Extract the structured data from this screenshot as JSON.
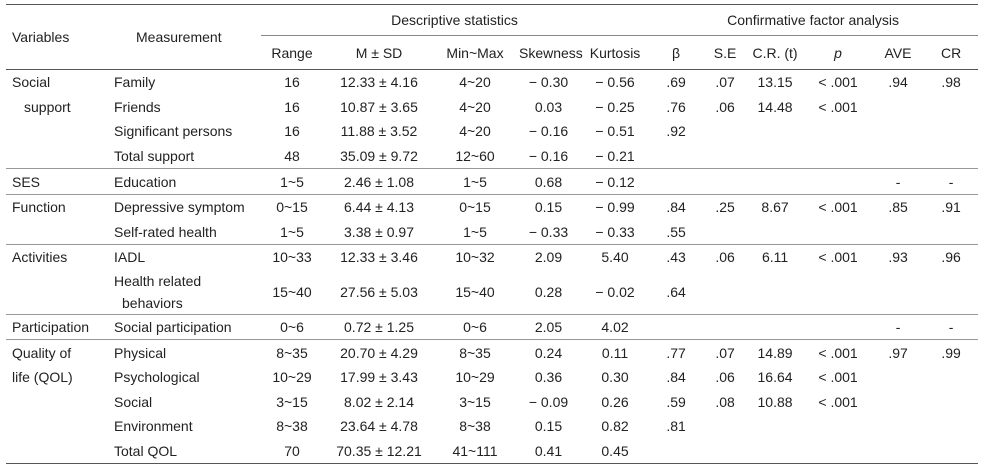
{
  "headers": {
    "variables": "Variables",
    "measurement": "Measurement",
    "group_desc": "Descriptive statistics",
    "group_cfa": "Confirmative factor analysis",
    "range": "Range",
    "msd": "M ± SD",
    "minmax": "Min~Max",
    "skewness": "Skewness",
    "kurtosis": "Kurtosis",
    "beta": "β",
    "se": "S.E",
    "cr_t": "C.R. (t)",
    "p": "p",
    "ave": "AVE",
    "cr": "CR"
  },
  "rows": [
    {
      "var": "Social",
      "meas": "Family",
      "range": "16",
      "msd": "12.33 ± 4.16",
      "minmax": "4~20",
      "skew": "− 0.30",
      "kurt": "− 0.56",
      "beta": ".69",
      "se": ".07",
      "crt": "13.15",
      "p": "< .001",
      "ave": ".94",
      "cr": ".98"
    },
    {
      "var": "support",
      "meas": "Friends",
      "range": "16",
      "msd": "10.87 ± 3.65",
      "minmax": "4~20",
      "skew": "0.03",
      "kurt": "− 0.25",
      "beta": ".76",
      "se": ".06",
      "crt": "14.48",
      "p": "< .001",
      "ave": "",
      "cr": ""
    },
    {
      "var": "",
      "meas": "Significant persons",
      "range": "16",
      "msd": "11.88 ± 3.52",
      "minmax": "4~20",
      "skew": "− 0.16",
      "kurt": "− 0.51",
      "beta": ".92",
      "se": "",
      "crt": "",
      "p": "",
      "ave": "",
      "cr": ""
    },
    {
      "var": "",
      "meas": "Total support",
      "range": "48",
      "msd": "35.09 ± 9.72",
      "minmax": "12~60",
      "skew": "− 0.16",
      "kurt": "− 0.21",
      "beta": "",
      "se": "",
      "crt": "",
      "p": "",
      "ave": "",
      "cr": ""
    },
    {
      "var": "SES",
      "meas": "Education",
      "range": "1~5",
      "msd": "2.46 ± 1.08",
      "minmax": "1~5",
      "skew": "0.68",
      "kurt": "− 0.12",
      "beta": "",
      "se": "",
      "crt": "",
      "p": "",
      "ave": "-",
      "cr": "-"
    },
    {
      "var": "Function",
      "meas": "Depressive symptom",
      "range": "0~15",
      "msd": "6.44 ± 4.13",
      "minmax": "0~15",
      "skew": "0.15",
      "kurt": "− 0.99",
      "beta": ".84",
      "se": ".25",
      "crt": "8.67",
      "p": "< .001",
      "ave": ".85",
      "cr": ".91"
    },
    {
      "var": "",
      "meas": "Self-rated health",
      "range": "1~5",
      "msd": "3.38 ± 0.97",
      "minmax": "1~5",
      "skew": "− 0.33",
      "kurt": "− 0.33",
      "beta": ".55",
      "se": "",
      "crt": "",
      "p": "",
      "ave": "",
      "cr": ""
    },
    {
      "var": "Activities",
      "meas": "IADL",
      "range": "10~33",
      "msd": "12.33 ± 3.46",
      "minmax": "10~32",
      "skew": "2.09",
      "kurt": "5.40",
      "beta": ".43",
      "se": ".06",
      "crt": "6.11",
      "p": "< .001",
      "ave": ".93",
      "cr": ".96"
    },
    {
      "var": "",
      "meas": "Health related",
      "meas2": "behaviors",
      "range": "15~40",
      "msd": "27.56 ± 5.03",
      "minmax": "15~40",
      "skew": "0.28",
      "kurt": "− 0.02",
      "beta": ".64",
      "se": "",
      "crt": "",
      "p": "",
      "ave": "",
      "cr": ""
    },
    {
      "var": "Participation",
      "meas": "Social participation",
      "range": "0~6",
      "msd": "0.72 ± 1.25",
      "minmax": "0~6",
      "skew": "2.05",
      "kurt": "4.02",
      "beta": "",
      "se": "",
      "crt": "",
      "p": "",
      "ave": "-",
      "cr": "-"
    },
    {
      "var": "Quality of",
      "meas": "Physical",
      "range": "8~35",
      "msd": "20.70 ± 4.29",
      "minmax": "8~35",
      "skew": "0.24",
      "kurt": "0.11",
      "beta": ".77",
      "se": ".07",
      "crt": "14.89",
      "p": "< .001",
      "ave": ".97",
      "cr": ".99"
    },
    {
      "var": "life (QOL)",
      "meas": "Psychological",
      "range": "10~29",
      "msd": "17.99 ± 3.43",
      "minmax": "10~29",
      "skew": "0.36",
      "kurt": "0.30",
      "beta": ".84",
      "se": ".06",
      "crt": "16.64",
      "p": "< .001",
      "ave": "",
      "cr": ""
    },
    {
      "var": "",
      "meas": "Social",
      "range": "3~15",
      "msd": "8.02 ± 2.14",
      "minmax": "3~15",
      "skew": "− 0.09",
      "kurt": "0.26",
      "beta": ".59",
      "se": ".08",
      "crt": "10.88",
      "p": "< .001",
      "ave": "",
      "cr": ""
    },
    {
      "var": "",
      "meas": "Environment",
      "range": "8~38",
      "msd": "23.64 ± 4.78",
      "minmax": "8~38",
      "skew": "0.15",
      "kurt": "0.82",
      "beta": ".81",
      "se": "",
      "crt": "",
      "p": "",
      "ave": "",
      "cr": ""
    },
    {
      "var": "",
      "meas": "Total QOL",
      "range": "70",
      "msd": "70.35 ± 12.21",
      "minmax": "41~111",
      "skew": "0.41",
      "kurt": "0.45",
      "beta": "",
      "se": "",
      "crt": "",
      "p": "",
      "ave": "",
      "cr": ""
    }
  ]
}
